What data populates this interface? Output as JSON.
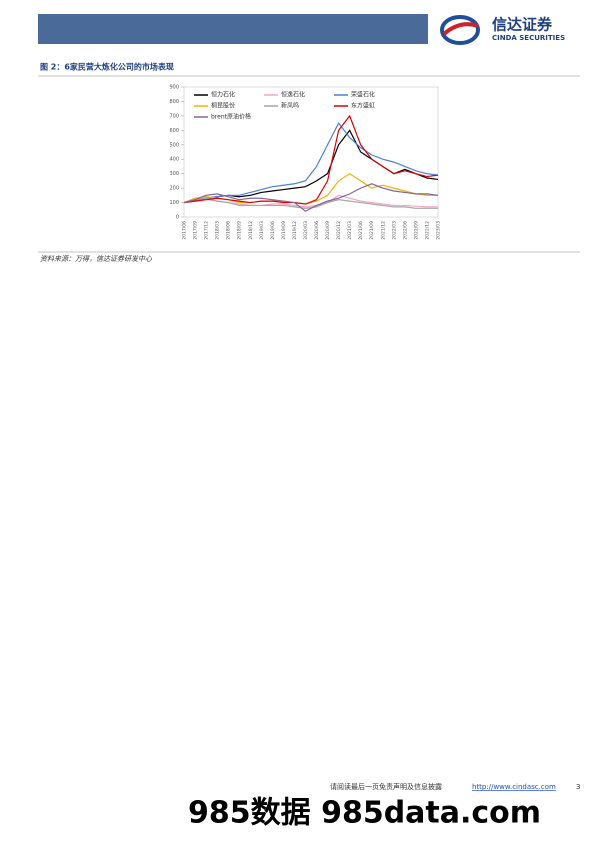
{
  "header": {
    "logo_cn": "信达证券",
    "logo_en": "CINDA SECURITIES"
  },
  "figure": {
    "caption": "图 2：6家民营大炼化公司的市场表现",
    "source": "资料来源：万得，信达证券研发中心"
  },
  "chart_data": {
    "type": "line",
    "categories": [
      "2017/06",
      "2017/09",
      "2017/12",
      "2018/03",
      "2018/06",
      "2018/09",
      "2018/12",
      "2019/03",
      "2019/06",
      "2019/09",
      "2019/12",
      "2020/03",
      "2020/06",
      "2020/09",
      "2020/12",
      "2021/03",
      "2021/06",
      "2021/09",
      "2021/12",
      "2022/03",
      "2022/06",
      "2022/09",
      "2022/12",
      "2023/03"
    ],
    "ylim": [
      0,
      900
    ],
    "yticks": [
      0,
      100,
      200,
      300,
      400,
      500,
      600,
      700,
      800,
      900
    ],
    "series": [
      {
        "name": "恒力石化",
        "color": "#000000",
        "values": [
          100,
          110,
          130,
          140,
          150,
          140,
          150,
          170,
          180,
          190,
          200,
          210,
          250,
          300,
          500,
          600,
          450,
          400,
          350,
          300,
          330,
          300,
          270,
          260
        ]
      },
      {
        "name": "恒逸石化",
        "color": "#f4a6c0",
        "values": [
          100,
          110,
          120,
          110,
          100,
          90,
          80,
          80,
          90,
          90,
          80,
          70,
          80,
          100,
          150,
          130,
          110,
          100,
          90,
          80,
          80,
          75,
          70,
          70
        ]
      },
      {
        "name": "荣盛石化",
        "color": "#4a7fdc",
        "values": [
          100,
          120,
          130,
          140,
          150,
          150,
          170,
          190,
          210,
          220,
          230,
          250,
          350,
          500,
          650,
          550,
          480,
          430,
          400,
          380,
          350,
          320,
          300,
          290
        ]
      },
      {
        "name": "桐昆股份",
        "color": "#f0b400",
        "values": [
          100,
          130,
          140,
          130,
          120,
          100,
          100,
          110,
          110,
          110,
          100,
          90,
          110,
          150,
          250,
          300,
          250,
          200,
          220,
          200,
          180,
          160,
          150,
          150
        ]
      },
      {
        "name": "新凤鸣",
        "color": "#a6a6a6",
        "values": [
          100,
          120,
          130,
          110,
          100,
          80,
          80,
          80,
          80,
          80,
          70,
          60,
          70,
          100,
          120,
          110,
          100,
          90,
          80,
          70,
          70,
          60,
          60,
          60
        ]
      },
      {
        "name": "东方盛虹",
        "color": "#e00000",
        "values": [
          100,
          110,
          120,
          130,
          120,
          110,
          100,
          110,
          110,
          100,
          100,
          90,
          120,
          250,
          600,
          700,
          500,
          400,
          350,
          300,
          320,
          300,
          280,
          290
        ]
      },
      {
        "name": "brent原油价格",
        "color": "#8064a2",
        "values": [
          100,
          120,
          150,
          160,
          140,
          120,
          130,
          130,
          120,
          110,
          100,
          40,
          80,
          110,
          130,
          160,
          200,
          230,
          200,
          180,
          170,
          160,
          160,
          150
        ]
      }
    ]
  },
  "footer": {
    "disclaimer": "请阅读最后一页免责声明及信息披露",
    "url": "http://www.cindasc.com",
    "page": "3"
  },
  "watermark": "985数据 985data.com"
}
